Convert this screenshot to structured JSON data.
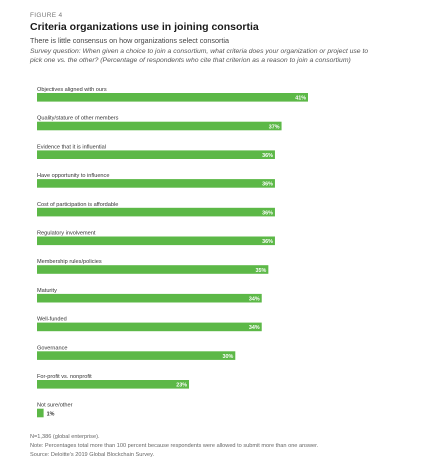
{
  "figure_label": "FIGURE 4",
  "title": "Criteria organizations use in joining consortia",
  "subtitle": "There is little consensus on how organizations select consortia",
  "question": "Survey question: When given a choice to join a consortium, what criteria does your organization or project use to pick one vs. the other? (Percentage of respondents who cite that criterion as a reason to join a consortium)",
  "notes": {
    "n": "N=1,386 (global enterprise).",
    "note": "Note: Percentages total more than 100 percent because respondents were allowed to submit more than one answer.",
    "source": "Source: Deloitte's 2019 Global Blockchain Survey."
  },
  "colors": {
    "bar": "#5cb847",
    "label_text": "#333333"
  },
  "chart_data": {
    "type": "bar",
    "orientation": "horizontal",
    "categories": [
      "Objectives aligned with ours",
      "Quality/stature of other members",
      "Evidence that it is influential",
      "Have opportunity to influence",
      "Cost of participation is affordable",
      "Regulatory involvement",
      "Membership rules/policies",
      "Maturity",
      "Well-funded",
      "Governance",
      "For-profit vs. nonprofit",
      "Not sure/other"
    ],
    "values": [
      41,
      37,
      36,
      36,
      36,
      36,
      35,
      34,
      34,
      30,
      23,
      1
    ],
    "value_labels": [
      "41%",
      "37%",
      "36%",
      "36%",
      "36%",
      "36%",
      "35%",
      "34%",
      "34%",
      "30%",
      "23%",
      "1%"
    ],
    "unit": "%",
    "xlim": [
      0,
      41
    ],
    "grid": false,
    "legend": "none"
  }
}
